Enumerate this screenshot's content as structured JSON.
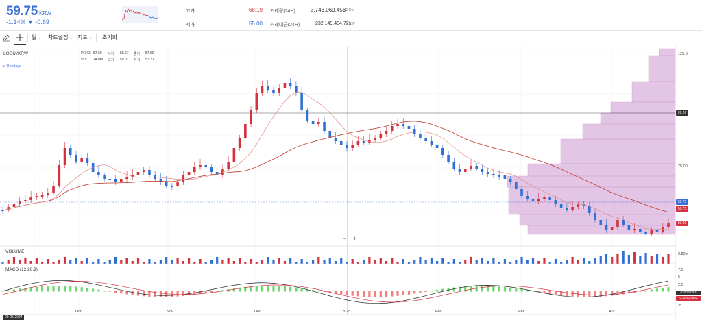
{
  "header": {
    "price": "59.75",
    "unit": "KRW",
    "change": "-1.14% ▼ -0.69",
    "high_label": "고가",
    "high_value": "68.19",
    "low_label": "저가",
    "low_value": "55.00",
    "volume_label": "거래량(24H)",
    "volume_value": "3,743,069,453",
    "volume_unit": "LOOM",
    "amount_label": "거래대금(24H)",
    "amount_value": "232,149,404,721",
    "amount_unit": "KRW"
  },
  "toolbar": {
    "draw_icon": "pencil-icon",
    "crosshair_icon": "crosshair-icon",
    "period": "일",
    "chart_settings": "차트설정",
    "indicators": "지표",
    "reset": "초기화"
  },
  "chart": {
    "symbol": "LOOM/KRW",
    "overlays": "Overlays",
    "ohlc": {
      "price_label": "PRICE",
      "price": "57.60",
      "open_label": "시가",
      "open": "58.67",
      "close_label": "종가",
      "close": "57.60",
      "vol_label": "VOL",
      "vol": "14.0M",
      "high_label": "고가",
      "high": "59.07",
      "low_label": "저가",
      "low": "57.31"
    },
    "price_axis": [
      "125.0",
      "99.26",
      "75.00",
      "59.75",
      "56.75",
      "50.00"
    ],
    "volume_title": "VOLUME",
    "volume_axis": "2.50b",
    "macd_title": "MACD (12,26,9)",
    "macd_axis": [
      "7.5",
      "5",
      "2.5",
      "0",
      "-2.5",
      "-5"
    ],
    "macd_tags": [
      "-1.0009301",
      "-2.64527562"
    ],
    "time_axis": [
      "Oct",
      "Nov",
      "Dec",
      "2025",
      "Feb",
      "Mar",
      "Apr"
    ],
    "crosshair_date": "09-05-2024",
    "zoom_out": "−",
    "zoom_in": "+"
  },
  "colors": {
    "up": "#d6313e",
    "down": "#2f6fd6",
    "ma_slow": "#c0392b",
    "ma_fast": "#e08a80",
    "vprofile": "#d9b3dc",
    "accent": "#3b6fd6"
  }
}
